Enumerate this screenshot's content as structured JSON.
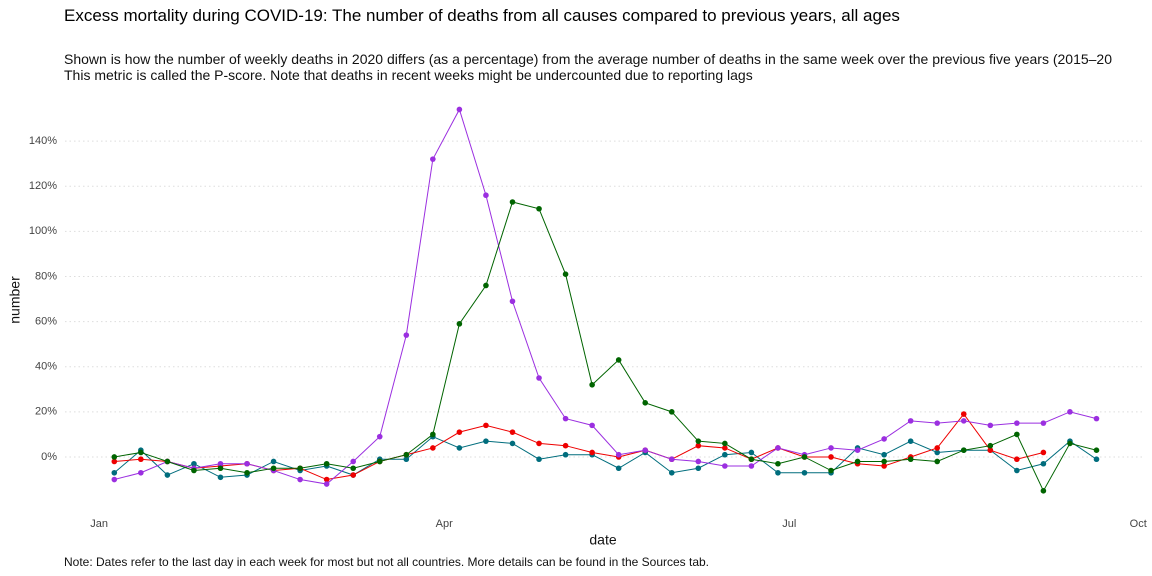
{
  "chart_data": {
    "type": "line",
    "title": "Excess mortality during COVID-19: The number of deaths from all causes compared to previous years, all ages",
    "subtitle": [
      "Shown is how the number of weekly deaths in 2020 differs (as a percentage) from the average number of deaths in the same week over the previous five years (2015–20",
      "This metric is called the P-score. Note that deaths in recent weeks might be undercounted due to reporting lags"
    ],
    "xlabel": "date",
    "ylabel": "number",
    "note": "Note: Dates refer to the last day in each week for most but not all countries. More details can be found in the Sources tab.",
    "x": [
      4,
      11,
      18,
      25,
      32,
      39,
      46,
      53,
      60,
      67,
      74,
      81,
      88,
      95,
      102,
      109,
      116,
      123,
      130,
      137,
      144,
      151,
      158,
      165,
      172,
      179,
      186,
      193,
      200,
      207,
      214,
      221,
      228,
      235,
      242,
      249,
      256,
      263
    ],
    "xlim": [
      -9,
      275
    ],
    "xticks": [
      {
        "value": 0,
        "label": "Jan"
      },
      {
        "value": 91,
        "label": "Apr"
      },
      {
        "value": 182,
        "label": "Jul"
      },
      {
        "value": 274,
        "label": "Oct"
      }
    ],
    "ylim": [
      -23.5,
      158.2
    ],
    "yticks": [
      {
        "value": 0,
        "label": "0%"
      },
      {
        "value": 20,
        "label": "20%"
      },
      {
        "value": 40,
        "label": "40%"
      },
      {
        "value": 60,
        "label": "60%"
      },
      {
        "value": 80,
        "label": "80%"
      },
      {
        "value": 100,
        "label": "100%"
      },
      {
        "value": 120,
        "label": "120%"
      },
      {
        "value": 140,
        "label": "140%"
      }
    ],
    "grid": true,
    "series": [
      {
        "color": "#006d7d",
        "values": [
          -7,
          3,
          -8,
          -3,
          -9,
          -8,
          -2,
          -6,
          -4,
          -8,
          -1,
          -1,
          9,
          4,
          7,
          6,
          -1,
          1,
          1,
          -5,
          2,
          -7,
          -5,
          1,
          2,
          -7,
          -7,
          -7,
          4,
          1,
          7,
          2,
          3,
          3,
          -6,
          -3,
          7,
          -1
        ]
      },
      {
        "color": "#ee0000",
        "values": [
          -2,
          -1,
          -2,
          -5,
          -4,
          -3,
          -6,
          -5,
          -10,
          -8,
          -2,
          1,
          4,
          11,
          14,
          11,
          6,
          5,
          2,
          0,
          3,
          -1,
          5,
          4,
          -1,
          4,
          0,
          0,
          -3,
          -4,
          0,
          4,
          19,
          3,
          -1,
          2,
          null,
          null
        ]
      },
      {
        "color": "#9b2fe0",
        "values": [
          -10,
          -7,
          -2,
          -5,
          -3,
          -3,
          -6,
          -10,
          -12,
          -2,
          9,
          54,
          132,
          154,
          116,
          69,
          35,
          17,
          14,
          1,
          3,
          -1,
          -2,
          -4,
          -4,
          4,
          1,
          4,
          3,
          8,
          16,
          15,
          16,
          14,
          15,
          15,
          20,
          17
        ]
      },
      {
        "color": "#006400",
        "values": [
          0,
          2,
          -2,
          -6,
          -5,
          -7,
          -5,
          -5,
          -3,
          -5,
          -2,
          1,
          10,
          59,
          76,
          113,
          110,
          81,
          32,
          43,
          24,
          20,
          7,
          6,
          -1,
          -3,
          0,
          -6,
          -2,
          -2,
          -1,
          -2,
          3,
          5,
          10,
          -15,
          6,
          3
        ]
      }
    ]
  }
}
